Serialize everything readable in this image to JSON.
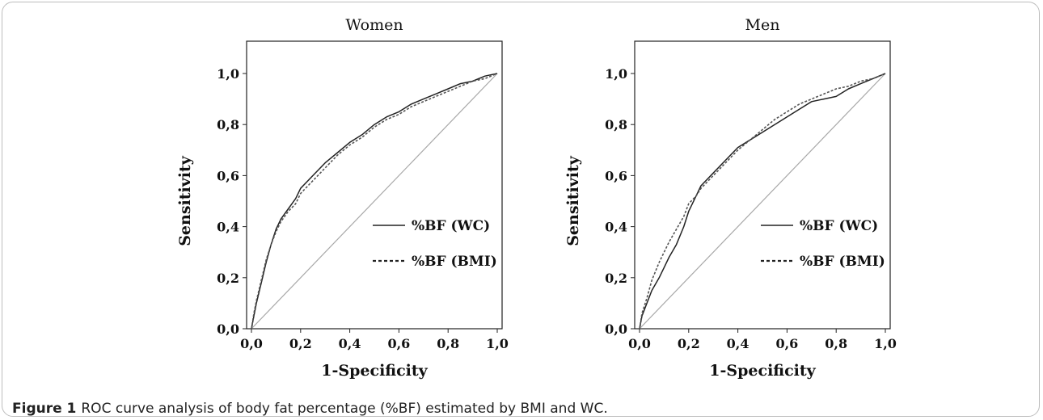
{
  "chart_data": [
    {
      "type": "line",
      "title": "Women",
      "xlabel": "1-Specificity",
      "ylabel": "Sensitivity",
      "xlim": [
        0,
        1
      ],
      "ylim": [
        0,
        1
      ],
      "x_ticks": [
        "0,0",
        "0,2",
        "0,4",
        "0,6",
        "0,8",
        "1,0"
      ],
      "y_ticks": [
        "0,0",
        "0,2",
        "0,4",
        "0,6",
        "0,8",
        "1,0"
      ],
      "legend_position": "bottom-right",
      "reference_line_color": "#a8a8a8",
      "series": [
        {
          "name": "%BF (WC)",
          "style": "solid",
          "points": [
            [
              0,
              0
            ],
            [
              0.01,
              0.05
            ],
            [
              0.02,
              0.1
            ],
            [
              0.04,
              0.18
            ],
            [
              0.06,
              0.26
            ],
            [
              0.08,
              0.33
            ],
            [
              0.1,
              0.39
            ],
            [
              0.12,
              0.43
            ],
            [
              0.15,
              0.47
            ],
            [
              0.18,
              0.51
            ],
            [
              0.2,
              0.55
            ],
            [
              0.25,
              0.6
            ],
            [
              0.3,
              0.65
            ],
            [
              0.35,
              0.69
            ],
            [
              0.4,
              0.73
            ],
            [
              0.45,
              0.76
            ],
            [
              0.5,
              0.8
            ],
            [
              0.55,
              0.83
            ],
            [
              0.6,
              0.85
            ],
            [
              0.65,
              0.88
            ],
            [
              0.7,
              0.9
            ],
            [
              0.75,
              0.92
            ],
            [
              0.8,
              0.94
            ],
            [
              0.85,
              0.96
            ],
            [
              0.9,
              0.97
            ],
            [
              0.95,
              0.99
            ],
            [
              1,
              1
            ]
          ]
        },
        {
          "name": "%BF (BMI)",
          "style": "dashed",
          "points": [
            [
              0,
              0
            ],
            [
              0.01,
              0.06
            ],
            [
              0.02,
              0.11
            ],
            [
              0.04,
              0.19
            ],
            [
              0.06,
              0.27
            ],
            [
              0.08,
              0.33
            ],
            [
              0.1,
              0.38
            ],
            [
              0.12,
              0.42
            ],
            [
              0.15,
              0.46
            ],
            [
              0.18,
              0.49
            ],
            [
              0.2,
              0.53
            ],
            [
              0.25,
              0.58
            ],
            [
              0.3,
              0.63
            ],
            [
              0.35,
              0.68
            ],
            [
              0.4,
              0.72
            ],
            [
              0.45,
              0.75
            ],
            [
              0.5,
              0.79
            ],
            [
              0.55,
              0.82
            ],
            [
              0.6,
              0.84
            ],
            [
              0.65,
              0.87
            ],
            [
              0.7,
              0.89
            ],
            [
              0.75,
              0.91
            ],
            [
              0.8,
              0.93
            ],
            [
              0.85,
              0.95
            ],
            [
              0.9,
              0.97
            ],
            [
              0.95,
              0.98
            ],
            [
              1,
              1
            ]
          ]
        }
      ]
    },
    {
      "type": "line",
      "title": "Men",
      "xlabel": "1-Specificity",
      "ylabel": "Sensitivity",
      "xlim": [
        0,
        1
      ],
      "ylim": [
        0,
        1
      ],
      "x_ticks": [
        "0,0",
        "0,2",
        "0,4",
        "0,6",
        "0,8",
        "1,0"
      ],
      "y_ticks": [
        "0,0",
        "0,2",
        "0,4",
        "0,6",
        "0,8",
        "1,0"
      ],
      "legend_position": "bottom-right",
      "reference_line_color": "#a8a8a8",
      "series": [
        {
          "name": "%BF (WC)",
          "style": "solid",
          "points": [
            [
              0,
              0
            ],
            [
              0.01,
              0.05
            ],
            [
              0.03,
              0.1
            ],
            [
              0.05,
              0.15
            ],
            [
              0.08,
              0.2
            ],
            [
              0.1,
              0.24
            ],
            [
              0.12,
              0.28
            ],
            [
              0.15,
              0.33
            ],
            [
              0.18,
              0.4
            ],
            [
              0.2,
              0.46
            ],
            [
              0.23,
              0.52
            ],
            [
              0.25,
              0.56
            ],
            [
              0.3,
              0.61
            ],
            [
              0.35,
              0.66
            ],
            [
              0.4,
              0.71
            ],
            [
              0.45,
              0.74
            ],
            [
              0.5,
              0.77
            ],
            [
              0.55,
              0.8
            ],
            [
              0.6,
              0.83
            ],
            [
              0.65,
              0.86
            ],
            [
              0.7,
              0.89
            ],
            [
              0.75,
              0.9
            ],
            [
              0.8,
              0.91
            ],
            [
              0.85,
              0.94
            ],
            [
              0.9,
              0.96
            ],
            [
              0.95,
              0.98
            ],
            [
              1,
              1
            ]
          ]
        },
        {
          "name": "%BF (BMI)",
          "style": "dashed",
          "points": [
            [
              0,
              0
            ],
            [
              0.01,
              0.06
            ],
            [
              0.03,
              0.12
            ],
            [
              0.05,
              0.19
            ],
            [
              0.08,
              0.26
            ],
            [
              0.1,
              0.3
            ],
            [
              0.12,
              0.34
            ],
            [
              0.15,
              0.39
            ],
            [
              0.18,
              0.44
            ],
            [
              0.2,
              0.49
            ],
            [
              0.23,
              0.52
            ],
            [
              0.25,
              0.55
            ],
            [
              0.3,
              0.6
            ],
            [
              0.35,
              0.65
            ],
            [
              0.4,
              0.7
            ],
            [
              0.45,
              0.74
            ],
            [
              0.5,
              0.78
            ],
            [
              0.55,
              0.82
            ],
            [
              0.6,
              0.85
            ],
            [
              0.65,
              0.88
            ],
            [
              0.7,
              0.9
            ],
            [
              0.75,
              0.92
            ],
            [
              0.8,
              0.94
            ],
            [
              0.85,
              0.95
            ],
            [
              0.9,
              0.97
            ],
            [
              0.95,
              0.98
            ],
            [
              1,
              1
            ]
          ]
        }
      ]
    }
  ],
  "caption": {
    "label": "Figure 1",
    "text": "ROC curve analysis of body fat percentage (%BF) estimated by BMI and WC."
  }
}
